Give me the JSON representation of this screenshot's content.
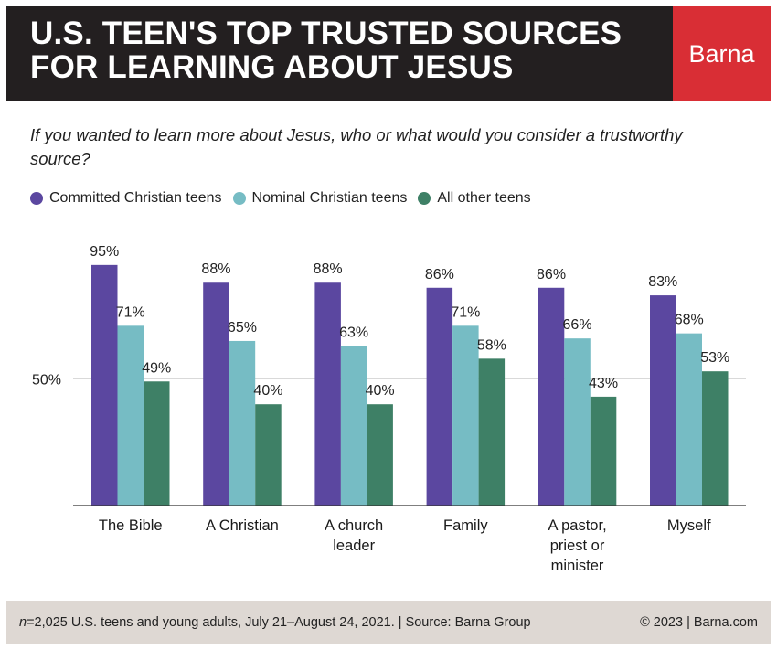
{
  "header": {
    "title_line1": "U.S. TEEN'S TOP TRUSTED SOURCES",
    "title_line2": "FOR LEARNING ABOUT JESUS",
    "brand": "Barna"
  },
  "question": "If you wanted to learn more about Jesus, who or what would you consider a trustworthy source?",
  "colors": {
    "committed": "#5b47a0",
    "nominal": "#76bcc4",
    "other": "#3e8066",
    "header_bg": "#231f20",
    "brand_bg": "#d92e35",
    "footer_bg": "#ded8d3"
  },
  "chart_data": {
    "type": "bar",
    "title": "U.S. TEEN'S TOP TRUSTED SOURCES FOR LEARNING ABOUT JESUS",
    "categories": [
      [
        "The Bible"
      ],
      [
        "A Christian"
      ],
      [
        "A church",
        "leader"
      ],
      [
        "Family"
      ],
      [
        "A pastor,",
        "priest or",
        "minister"
      ],
      [
        "Myself"
      ]
    ],
    "series": [
      {
        "name": "Committed Christian teens",
        "values": [
          95,
          88,
          88,
          86,
          86,
          83
        ]
      },
      {
        "name": "Nominal Christian teens",
        "values": [
          71,
          65,
          63,
          71,
          66,
          68
        ]
      },
      {
        "name": "All other teens",
        "values": [
          49,
          40,
          40,
          58,
          43,
          53
        ]
      }
    ],
    "value_suffix": "%",
    "yticks": [
      {
        "value": 50,
        "label": "50%"
      }
    ],
    "ylim": [
      0,
      100
    ],
    "xlabel": "",
    "ylabel": "",
    "legend": "top-left"
  },
  "footer": {
    "n_label": "n",
    "note": "=2,025 U.S. teens and young adults, July 21–August 24, 2021. | Source: Barna Group",
    "copyright": "© 2023 | Barna.com"
  }
}
